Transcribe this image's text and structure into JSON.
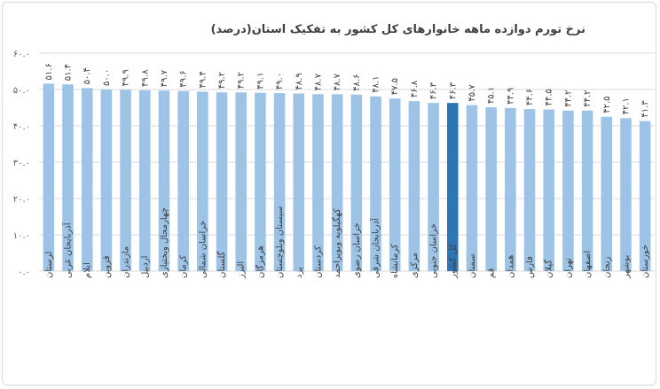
{
  "chart_data": {
    "type": "bar",
    "title": "نرخ تورم دوازده ماهه خانوارهای کل کشور به تفکیک استان(درصد)",
    "xlabel": "",
    "ylabel": "",
    "ylim": [
      0,
      60
    ],
    "y_ticks": [
      0,
      10,
      20,
      30,
      40,
      50,
      60
    ],
    "y_tick_labels": [
      "۰.۰",
      "۱۰.۰",
      "۲۰.۰",
      "۳۰.۰",
      "۴۰.۰",
      "۵۰.۰",
      "۶۰.۰"
    ],
    "grid": true,
    "legend": "none",
    "colors": {
      "bar": "#9dc3e6",
      "highlight": "#2e75b6",
      "grid": "#d9d9d9"
    },
    "highlight_category": "کل کشور",
    "categories": [
      "لرستان",
      "آذربایجان غربی",
      "ایلام",
      "قزوین",
      "مازندران",
      "اردبیل",
      "چهارمحال وبختیاری",
      "کرمان",
      "خراسان شمالی",
      "گلستان",
      "البرز",
      "هرمزگان",
      "سیستان وبلوچستان",
      "یزد",
      "کردستان",
      "کهگیلویه وبویراحمد",
      "خراسان رضوی",
      "آذربایجان شرقی",
      "کرمانشاه",
      "مرکزی",
      "خراسان جنوبی",
      "کل کشور",
      "سمنان",
      "قم",
      "همدان",
      "فارس",
      "گیلان",
      "تهران",
      "اصفهان",
      "زنجان",
      "بوشهر",
      "خوزستان"
    ],
    "values": [
      51.6,
      51.4,
      50.4,
      50.0,
      49.9,
      49.8,
      49.7,
      49.6,
      49.4,
      49.2,
      49.2,
      49.1,
      49.0,
      48.9,
      48.7,
      48.7,
      48.6,
      48.1,
      47.5,
      46.8,
      46.3,
      46.3,
      45.7,
      45.1,
      44.9,
      44.6,
      44.5,
      44.2,
      44.2,
      42.5,
      42.1,
      41.3
    ],
    "value_labels": [
      "۵۱.۶",
      "۵۱.۴",
      "۵۰.۴",
      "۵۰.۰",
      "۴۹.۹",
      "۴۹.۸",
      "۴۹.۷",
      "۴۹.۶",
      "۴۹.۴",
      "۴۹.۲",
      "۴۹.۲",
      "۴۹.۱",
      "۴۹.۰",
      "۴۸.۹",
      "۴۸.۷",
      "۴۸.۷",
      "۴۸.۶",
      "۴۸.۱",
      "۴۷.۵",
      "۴۶.۸",
      "۴۶.۳",
      "۴۶.۳",
      "۴۵.۷",
      "۴۵.۱",
      "۴۴.۹",
      "۴۴.۶",
      "۴۴.۵",
      "۴۴.۲",
      "۴۴.۲",
      "۴۲.۵",
      "۴۲.۱",
      "۴۱.۳"
    ]
  }
}
